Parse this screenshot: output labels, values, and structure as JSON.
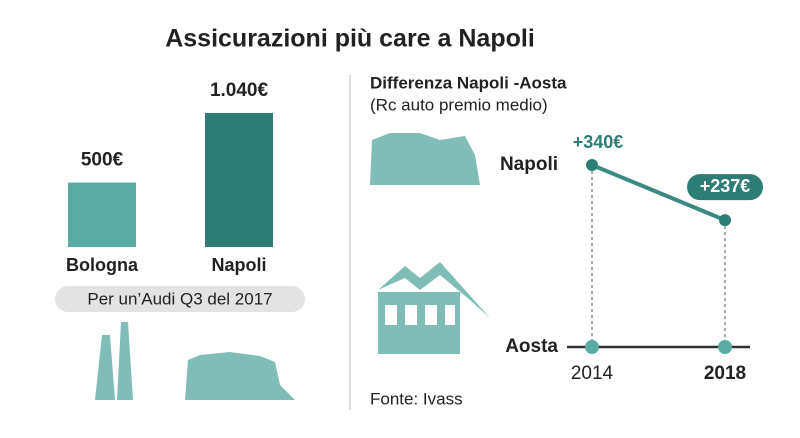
{
  "title": "Assicurazioni più care a Napoli",
  "source": "Fonte: Ivass",
  "chart_data": [
    {
      "type": "bar",
      "categories": [
        "Bologna",
        "Napoli"
      ],
      "values": [
        500,
        1040
      ],
      "value_labels": [
        "500€",
        "1.040€"
      ],
      "colors": [
        "#5aaba3",
        "#2e7d75"
      ],
      "annotation": "Per un’Audi Q3 del 2017"
    },
    {
      "type": "line",
      "title": "Differenza Napoli -Aosta",
      "subtitle": "(Rc auto premio medio)",
      "categories": [
        "2014",
        "2018"
      ],
      "series": [
        {
          "name": "Napoli",
          "color": "#3a8a82",
          "values": [
            340,
            237
          ],
          "value_labels": [
            "+340€",
            "+237€"
          ]
        },
        {
          "name": "Aosta",
          "color": "#333333",
          "values": [
            0,
            0
          ]
        }
      ]
    }
  ]
}
